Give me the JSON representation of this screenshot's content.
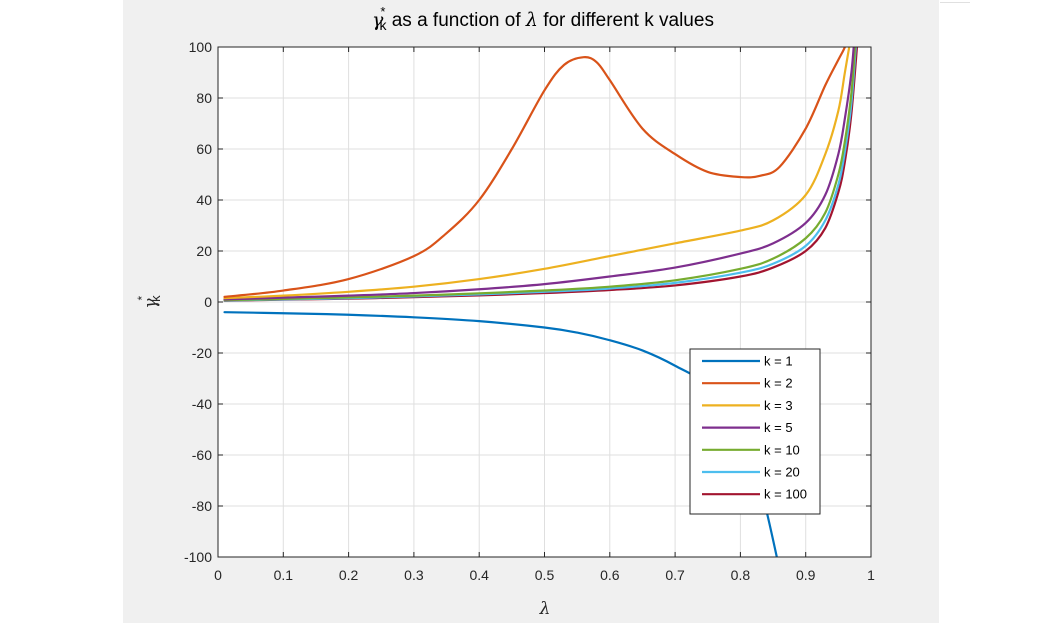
{
  "chart_data": {
    "type": "line",
    "title": {
      "symbol": "γ",
      "superscript": "*",
      "subscript": "k",
      "text_before_lambda": " as a function of ",
      "lambda": "λ",
      "text_after_lambda": " for different k values"
    },
    "xlabel": "λ",
    "ylabel": {
      "symbol": "γ",
      "superscript": "*",
      "subscript": "k"
    },
    "xlim": [
      0,
      1
    ],
    "ylim": [
      -100,
      100
    ],
    "xticks": [
      0,
      0.1,
      0.2,
      0.3,
      0.4,
      0.5,
      0.6,
      0.7,
      0.8,
      0.9,
      1
    ],
    "xtick_labels": [
      "0",
      "0.1",
      "0.2",
      "0.3",
      "0.4",
      "0.5",
      "0.6",
      "0.7",
      "0.8",
      "0.9",
      "1"
    ],
    "yticks": [
      -100,
      -80,
      -60,
      -40,
      -20,
      0,
      20,
      40,
      60,
      80,
      100
    ],
    "ytick_labels": [
      "-100",
      "-80",
      "-60",
      "-40",
      "-20",
      "0",
      "20",
      "40",
      "60",
      "80",
      "100"
    ],
    "grid": true,
    "legend_position": "lower-right",
    "series": [
      {
        "name": "k = 1",
        "color": "#0072BD",
        "x": [
          0.01,
          0.1,
          0.2,
          0.3,
          0.4,
          0.5,
          0.55,
          0.6,
          0.65,
          0.7,
          0.75,
          0.8,
          0.82,
          0.84,
          0.86
        ],
        "y": [
          -4,
          -4.4,
          -5,
          -6,
          -7.5,
          -10,
          -12,
          -15,
          -19,
          -25,
          -33,
          -50,
          -63,
          -82,
          -105
        ]
      },
      {
        "name": "k = 2",
        "color": "#D95319",
        "x": [
          0.01,
          0.1,
          0.2,
          0.3,
          0.35,
          0.4,
          0.45,
          0.5,
          0.53,
          0.56,
          0.58,
          0.6,
          0.65,
          0.7,
          0.75,
          0.8,
          0.83,
          0.86,
          0.9,
          0.93,
          0.95,
          0.96,
          0.965
        ],
        "y": [
          2,
          4.5,
          9,
          18,
          27,
          40,
          60,
          83,
          93,
          96,
          94,
          87,
          68,
          58,
          51,
          49,
          49.5,
          53,
          68,
          85,
          95,
          100,
          105
        ]
      },
      {
        "name": "k = 3",
        "color": "#EDB120",
        "x": [
          0.01,
          0.1,
          0.2,
          0.3,
          0.4,
          0.5,
          0.6,
          0.7,
          0.8,
          0.85,
          0.9,
          0.93,
          0.95,
          0.96,
          0.97
        ],
        "y": [
          1.5,
          2.5,
          4,
          6,
          9,
          13,
          18,
          23,
          28,
          32,
          42,
          58,
          75,
          90,
          105
        ]
      },
      {
        "name": "k = 5",
        "color": "#7E2F8E",
        "x": [
          0.01,
          0.1,
          0.2,
          0.3,
          0.4,
          0.5,
          0.6,
          0.7,
          0.8,
          0.85,
          0.9,
          0.93,
          0.95,
          0.96,
          0.97,
          0.975
        ],
        "y": [
          1,
          1.7,
          2.5,
          3.5,
          5,
          7,
          10,
          13.5,
          19,
          23,
          31,
          42,
          58,
          72,
          90,
          105
        ]
      },
      {
        "name": "k = 10",
        "color": "#77AC30",
        "x": [
          0.01,
          0.1,
          0.2,
          0.3,
          0.4,
          0.5,
          0.6,
          0.7,
          0.8,
          0.85,
          0.9,
          0.93,
          0.95,
          0.96,
          0.97,
          0.977
        ],
        "y": [
          0.7,
          1.2,
          1.8,
          2.5,
          3.4,
          4.5,
          6,
          8.5,
          13,
          17,
          25,
          35,
          50,
          63,
          82,
          105
        ]
      },
      {
        "name": "k = 20",
        "color": "#4DBEEE",
        "x": [
          0.01,
          0.1,
          0.2,
          0.3,
          0.4,
          0.5,
          0.6,
          0.7,
          0.8,
          0.85,
          0.9,
          0.93,
          0.95,
          0.96,
          0.97,
          0.978
        ],
        "y": [
          0.6,
          1,
          1.5,
          2.2,
          3,
          4,
          5.3,
          7.5,
          11.5,
          15,
          22,
          32,
          46,
          59,
          78,
          105
        ]
      },
      {
        "name": "k = 100",
        "color": "#A2142F",
        "x": [
          0.01,
          0.1,
          0.2,
          0.3,
          0.4,
          0.5,
          0.6,
          0.7,
          0.8,
          0.85,
          0.9,
          0.93,
          0.95,
          0.96,
          0.97,
          0.98
        ],
        "y": [
          0.5,
          0.9,
          1.3,
          1.9,
          2.6,
          3.5,
          4.7,
          6.5,
          10,
          13.5,
          20,
          29,
          43,
          55,
          74,
          105
        ]
      }
    ]
  }
}
